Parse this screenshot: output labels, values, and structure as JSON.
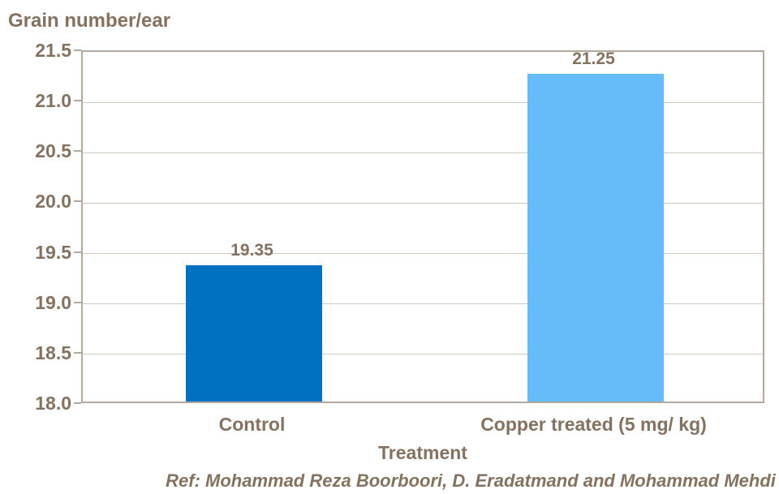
{
  "chart_data": {
    "type": "bar",
    "title": "Grain number/ear",
    "ylabel": "Grain number/ear",
    "xlabel": "Treatment",
    "categories": [
      "Control",
      "Copper treated (5 mg/ kg)"
    ],
    "values": [
      19.35,
      21.25
    ],
    "value_labels": [
      "19.35",
      "21.25"
    ],
    "bar_colors": [
      "#0070C0",
      "#66BCFB"
    ],
    "ylim": [
      18.0,
      21.5
    ],
    "ytick_step": 0.5,
    "ytick_labels": [
      "21.5",
      "21.0",
      "20.5",
      "20.0",
      "19.5",
      "19.0",
      "18.5",
      "18.0"
    ],
    "grid": true,
    "legend": false
  },
  "footer": {
    "ref_text": "Ref: Mohammad Reza Boorboori, D. Eradatmand and Mohammad Mehdi"
  },
  "colors": {
    "text": "#847260",
    "gridline": "#cfc8bf",
    "axis_border": "#b3a99e",
    "background": "#ffffff",
    "bar_control": "#0070C0",
    "bar_copper_treated": "#66BCFB"
  }
}
